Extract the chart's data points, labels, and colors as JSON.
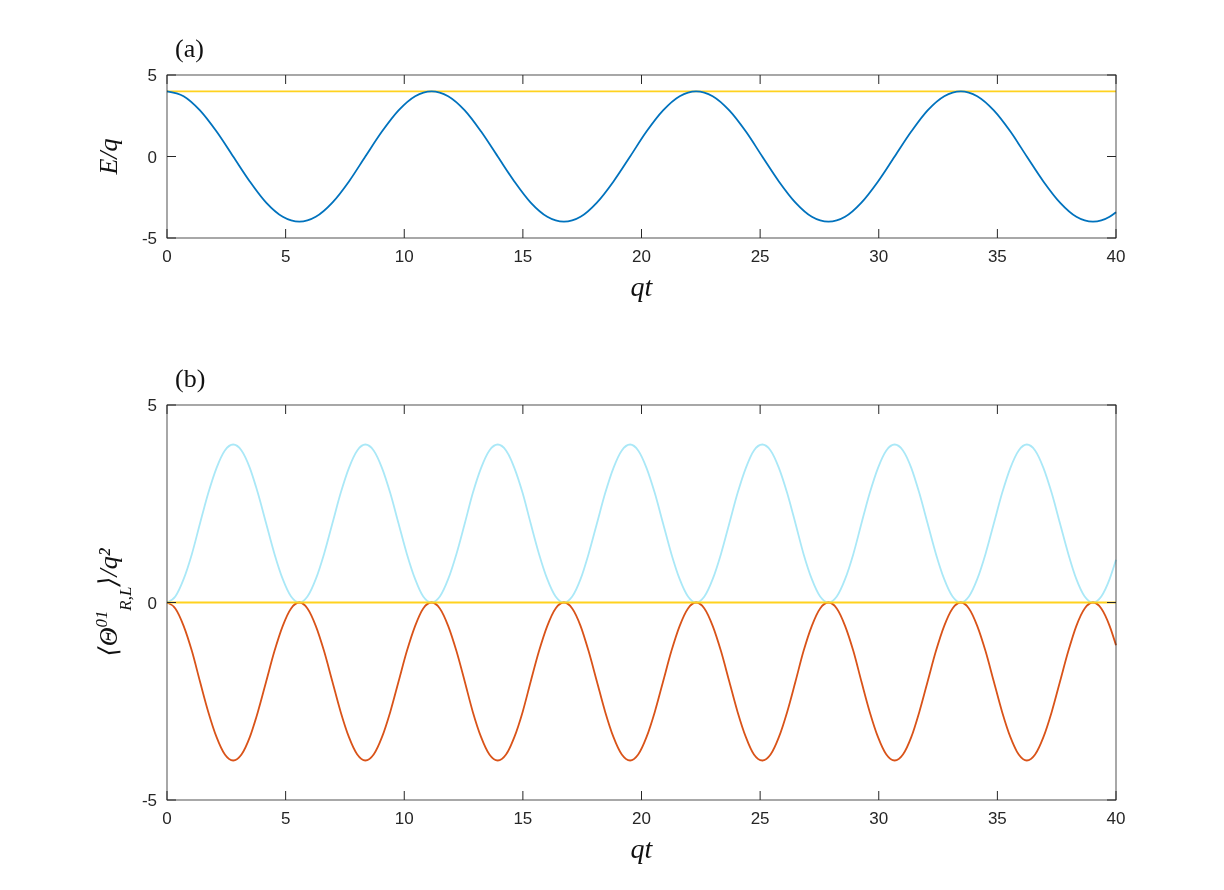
{
  "chart_data": [
    {
      "type": "line",
      "title": "(a)",
      "xlabel": "qt",
      "ylabel": "E/q",
      "xlim": [
        0,
        40
      ],
      "xticks": [
        0,
        5,
        10,
        15,
        20,
        25,
        30,
        35,
        40
      ],
      "ylim": [
        -5,
        5
      ],
      "yticks": [
        -5,
        0,
        5
      ],
      "series": [
        {
          "color": "#ffd21f",
          "x": [
            0,
            40
          ],
          "values": [
            4,
            4
          ]
        },
        {
          "color": "#0072bd",
          "x": [
            0,
            0.7,
            1.39,
            2.09,
            2.79,
            3.49,
            4.18,
            4.88,
            5.58,
            6.27,
            6.97,
            7.67,
            8.36,
            9.06,
            9.76,
            10.46,
            11.15,
            11.85,
            12.55,
            13.24,
            13.94,
            14.64,
            15.33,
            16.03,
            16.73,
            17.43,
            18.12,
            18.82,
            19.52,
            20.21,
            20.91,
            21.61,
            22.3,
            23.0,
            23.7,
            24.4,
            25.09,
            25.79,
            26.49,
            27.18,
            27.88,
            28.58,
            29.27,
            29.97,
            30.67,
            31.37,
            32.06,
            32.76,
            33.46,
            34.15,
            34.85,
            35.55,
            36.24,
            36.94,
            37.64,
            38.33,
            39.03,
            39.73,
            40
          ],
          "values": [
            4,
            3.7,
            2.83,
            1.53,
            0,
            -1.53,
            -2.83,
            -3.7,
            -4,
            -3.7,
            -2.83,
            -1.53,
            0,
            1.53,
            2.83,
            3.7,
            4,
            3.7,
            2.83,
            1.53,
            0,
            -1.53,
            -2.83,
            -3.7,
            -4,
            -3.7,
            -2.83,
            -1.53,
            0,
            1.53,
            2.83,
            3.7,
            4,
            3.7,
            2.83,
            1.53,
            0,
            -1.53,
            -2.83,
            -3.7,
            -4,
            -3.7,
            -2.83,
            -1.53,
            0,
            1.53,
            2.83,
            3.7,
            4,
            3.7,
            2.83,
            1.53,
            0,
            -1.53,
            -2.83,
            -3.7,
            -4,
            -3.7,
            -3.42
          ]
        }
      ]
    },
    {
      "type": "line",
      "title": "(b)",
      "xlabel": "qt",
      "ylabel": "⟨Θ$^{01}$$_{R,L}$⟩/q²",
      "xlim": [
        0,
        40
      ],
      "xticks": [
        0,
        5,
        10,
        15,
        20,
        25,
        30,
        35,
        40
      ],
      "ylim": [
        -5,
        5
      ],
      "yticks": [
        -5,
        0,
        5
      ],
      "x": [
        0,
        0.35,
        0.7,
        1.05,
        1.39,
        1.74,
        2.09,
        2.44,
        2.79,
        3.14,
        3.49,
        3.83,
        4.18,
        4.53,
        4.88,
        5.23,
        5.58,
        5.92,
        6.27,
        6.62,
        6.97,
        7.32,
        7.67,
        8.02,
        8.36,
        8.71,
        9.06,
        9.41,
        9.76,
        10.11,
        10.46,
        10.8,
        11.15,
        11.5,
        11.85,
        12.2,
        12.55,
        12.89,
        13.24,
        13.59,
        13.94,
        14.29,
        14.64,
        14.99,
        15.33,
        15.68,
        16.03,
        16.38,
        16.73,
        17.08,
        17.43,
        17.77,
        18.12,
        18.47,
        18.82,
        19.17,
        19.52,
        19.86,
        20.21,
        20.56,
        20.91,
        21.26,
        21.61,
        21.96,
        22.3,
        22.65,
        23.0,
        23.35,
        23.7,
        24.05,
        24.4,
        24.74,
        25.09,
        25.44,
        25.79,
        26.14,
        26.49,
        26.83,
        27.18,
        27.53,
        27.88,
        28.23,
        28.58,
        28.93,
        29.27,
        29.62,
        29.97,
        30.32,
        30.67,
        31.02,
        31.37,
        31.71,
        32.06,
        32.41,
        32.76,
        33.11,
        33.46,
        33.8,
        34.15,
        34.5,
        34.85,
        35.2,
        35.55,
        35.9,
        36.24,
        36.59,
        36.94,
        37.29,
        37.64,
        37.99,
        38.33,
        38.68,
        39.03,
        39.38,
        39.73,
        40
      ],
      "series": [
        {
          "color": "#aae8f7",
          "values": [
            0,
            0.15,
            0.59,
            1.23,
            2,
            2.77,
            3.41,
            3.85,
            4,
            3.85,
            3.41,
            2.77,
            2,
            1.23,
            0.59,
            0.15,
            0,
            0.15,
            0.59,
            1.23,
            2,
            2.77,
            3.41,
            3.85,
            4,
            3.85,
            3.41,
            2.77,
            2,
            1.23,
            0.59,
            0.15,
            0,
            0.15,
            0.59,
            1.23,
            2,
            2.77,
            3.41,
            3.85,
            4,
            3.85,
            3.41,
            2.77,
            2,
            1.23,
            0.59,
            0.15,
            0,
            0.15,
            0.59,
            1.23,
            2,
            2.77,
            3.41,
            3.85,
            4,
            3.85,
            3.41,
            2.77,
            2,
            1.23,
            0.59,
            0.15,
            0,
            0.15,
            0.59,
            1.23,
            2,
            2.77,
            3.41,
            3.85,
            4,
            3.85,
            3.41,
            2.77,
            2,
            1.23,
            0.59,
            0.15,
            0,
            0.15,
            0.59,
            1.23,
            2,
            2.77,
            3.41,
            3.85,
            4,
            3.85,
            3.41,
            2.77,
            2,
            1.23,
            0.59,
            0.15,
            0,
            0.15,
            0.59,
            1.23,
            2,
            2.77,
            3.41,
            3.85,
            4,
            3.85,
            3.41,
            2.77,
            2,
            1.23,
            0.59,
            0.15,
            0,
            0.15,
            0.59,
            1.08
          ]
        },
        {
          "color": "#d95319",
          "values": [
            0,
            -0.15,
            -0.59,
            -1.23,
            -2,
            -2.77,
            -3.41,
            -3.85,
            -4,
            -3.85,
            -3.41,
            -2.77,
            -2,
            -1.23,
            -0.59,
            -0.15,
            0,
            -0.15,
            -0.59,
            -1.23,
            -2,
            -2.77,
            -3.41,
            -3.85,
            -4,
            -3.85,
            -3.41,
            -2.77,
            -2,
            -1.23,
            -0.59,
            -0.15,
            0,
            -0.15,
            -0.59,
            -1.23,
            -2,
            -2.77,
            -3.41,
            -3.85,
            -4,
            -3.85,
            -3.41,
            -2.77,
            -2,
            -1.23,
            -0.59,
            -0.15,
            0,
            -0.15,
            -0.59,
            -1.23,
            -2,
            -2.77,
            -3.41,
            -3.85,
            -4,
            -3.85,
            -3.41,
            -2.77,
            -2,
            -1.23,
            -0.59,
            -0.15,
            0,
            -0.15,
            -0.59,
            -1.23,
            -2,
            -2.77,
            -3.41,
            -3.85,
            -4,
            -3.85,
            -3.41,
            -2.77,
            -2,
            -1.23,
            -0.59,
            -0.15,
            0,
            -0.15,
            -0.59,
            -1.23,
            -2,
            -2.77,
            -3.41,
            -3.85,
            -4,
            -3.85,
            -3.41,
            -2.77,
            -2,
            -1.23,
            -0.59,
            -0.15,
            0,
            -0.15,
            -0.59,
            -1.23,
            -2,
            -2.77,
            -3.41,
            -3.85,
            -4,
            -3.85,
            -3.41,
            -2.77,
            -2,
            -1.23,
            -0.59,
            -0.15,
            0,
            -0.15,
            -0.59,
            -1.08
          ]
        },
        {
          "color": "#ffd21f",
          "x": [
            0,
            40
          ],
          "values": [
            0,
            0
          ]
        }
      ]
    }
  ]
}
